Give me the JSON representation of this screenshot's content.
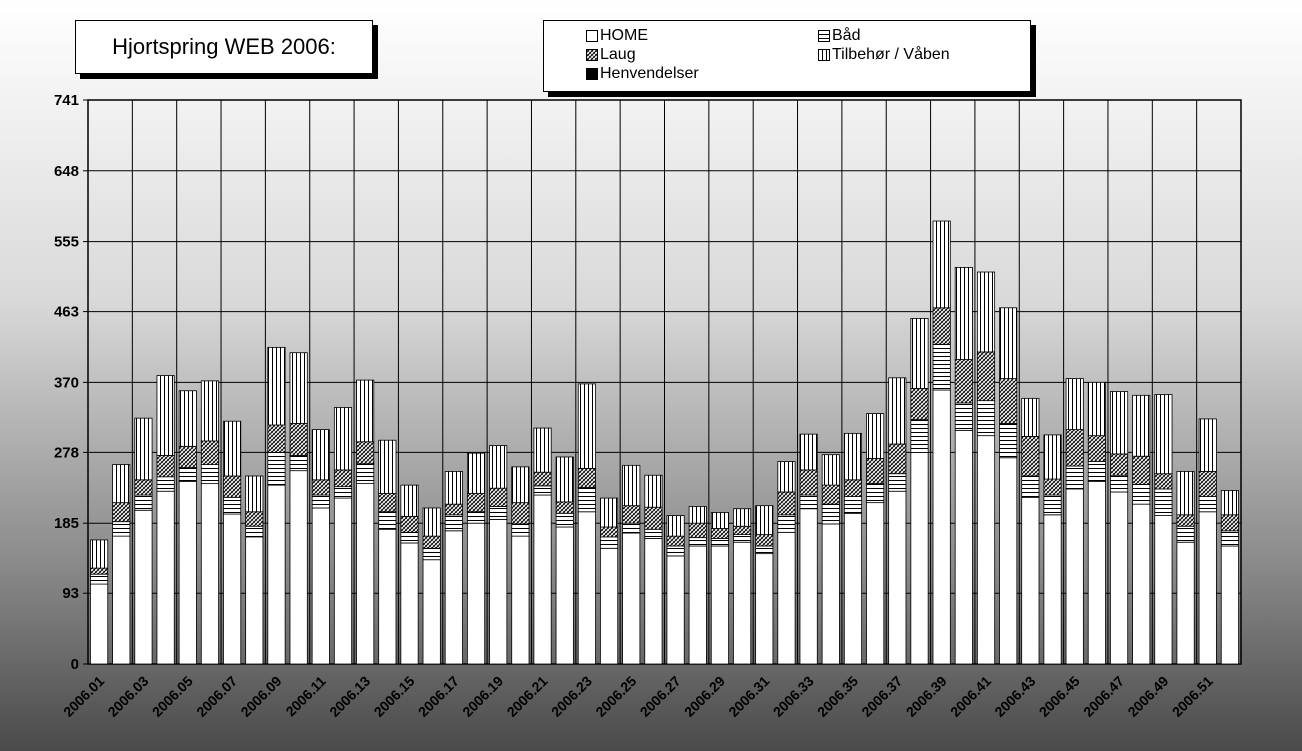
{
  "chart_data": {
    "type": "bar",
    "stacked": true,
    "title": "Hjortspring WEB 2006:",
    "xlabel": "",
    "ylabel": "",
    "ylim": [
      0,
      741
    ],
    "yticks": [
      0,
      93,
      185,
      278,
      370,
      463,
      555,
      648,
      741
    ],
    "grid": true,
    "legend_position": "top-center",
    "categories": [
      "2006.01",
      "2006.02",
      "2006.03",
      "2006.04",
      "2006.05",
      "2006.06",
      "2006.07",
      "2006.08",
      "2006.09",
      "2006.10",
      "2006.11",
      "2006.12",
      "2006.13",
      "2006.14",
      "2006.15",
      "2006.16",
      "2006.17",
      "2006.18",
      "2006.19",
      "2006.20",
      "2006.21",
      "2006.22",
      "2006.23",
      "2006.24",
      "2006.25",
      "2006.26",
      "2006.27",
      "2006.28",
      "2006.29",
      "2006.30",
      "2006.31",
      "2006.32",
      "2006.33",
      "2006.34",
      "2006.35",
      "2006.36",
      "2006.37",
      "2006.38",
      "2006.39",
      "2006.40",
      "2006.41",
      "2006.42",
      "2006.43",
      "2006.44",
      "2006.45",
      "2006.46",
      "2006.47",
      "2006.48",
      "2006.49",
      "2006.50",
      "2006.51",
      "2006.52"
    ],
    "xtick_labels": [
      "2006.01",
      "2006.03",
      "2006.05",
      "2006.07",
      "2006.09",
      "2006.11",
      "2006.13",
      "2006.15",
      "2006.17",
      "2006.19",
      "2006.21",
      "2006.23",
      "2006.25",
      "2006.27",
      "2006.29",
      "2006.31",
      "2006.33",
      "2006.35",
      "2006.37",
      "2006.39",
      "2006.41",
      "2006.43",
      "2006.45",
      "2006.47",
      "2006.49",
      "2006.51"
    ],
    "series": [
      {
        "name": "HOME",
        "pattern": "blank",
        "values": [
          105,
          168,
          202,
          227,
          240,
          237,
          197,
          167,
          235,
          254,
          205,
          218,
          237,
          177,
          159,
          137,
          175,
          185,
          190,
          168,
          222,
          180,
          200,
          152,
          172,
          165,
          142,
          155,
          155,
          160,
          145,
          173,
          204,
          184,
          198,
          212,
          227,
          278,
          360,
          307,
          300,
          271,
          219,
          196,
          230,
          240,
          226,
          210,
          195,
          160,
          200,
          155
        ]
      },
      {
        "name": "Båd",
        "pattern": "horizontal",
        "values": [
          13,
          19,
          20,
          19,
          18,
          25,
          22,
          14,
          43,
          20,
          17,
          15,
          26,
          23,
          14,
          15,
          21,
          15,
          17,
          16,
          12,
          18,
          32,
          15,
          13,
          12,
          13,
          11,
          10,
          10,
          10,
          23,
          18,
          26,
          22,
          25,
          23,
          43,
          60,
          36,
          46,
          45,
          28,
          26,
          30,
          26,
          22,
          26,
          35,
          21,
          20,
          20
        ]
      },
      {
        "name": "Laug",
        "pattern": "crosshatch",
        "values": [
          8,
          25,
          20,
          28,
          28,
          31,
          28,
          19,
          36,
          42,
          20,
          22,
          29,
          24,
          21,
          16,
          14,
          24,
          24,
          28,
          18,
          15,
          25,
          13,
          23,
          29,
          13,
          19,
          13,
          11,
          15,
          30,
          33,
          25,
          22,
          33,
          39,
          41,
          48,
          57,
          64,
          59,
          52,
          21,
          48,
          34,
          28,
          37,
          20,
          15,
          33,
          21
        ]
      },
      {
        "name": "Tilbehør / Våben",
        "pattern": "vertical",
        "values": [
          37,
          50,
          81,
          105,
          73,
          79,
          72,
          47,
          102,
          93,
          66,
          82,
          81,
          70,
          41,
          37,
          43,
          53,
          56,
          47,
          58,
          59,
          111,
          38,
          53,
          42,
          27,
          22,
          21,
          23,
          38,
          40,
          47,
          40,
          61,
          59,
          87,
          92,
          114,
          121,
          105,
          93,
          50,
          58,
          67,
          70,
          82,
          80,
          104,
          57,
          69,
          32
        ]
      },
      {
        "name": "Henvendelser",
        "pattern": "solid",
        "values": [
          0,
          0,
          0,
          0,
          0,
          0,
          0,
          0,
          0,
          0,
          0,
          0,
          0,
          0,
          0,
          0,
          0,
          0,
          0,
          0,
          0,
          0,
          0,
          0,
          0,
          0,
          0,
          0,
          0,
          0,
          0,
          0,
          0,
          0,
          0,
          0,
          0,
          0,
          0,
          0,
          0,
          0,
          0,
          0,
          0,
          0,
          0,
          0,
          0,
          0,
          0,
          0
        ]
      }
    ]
  }
}
